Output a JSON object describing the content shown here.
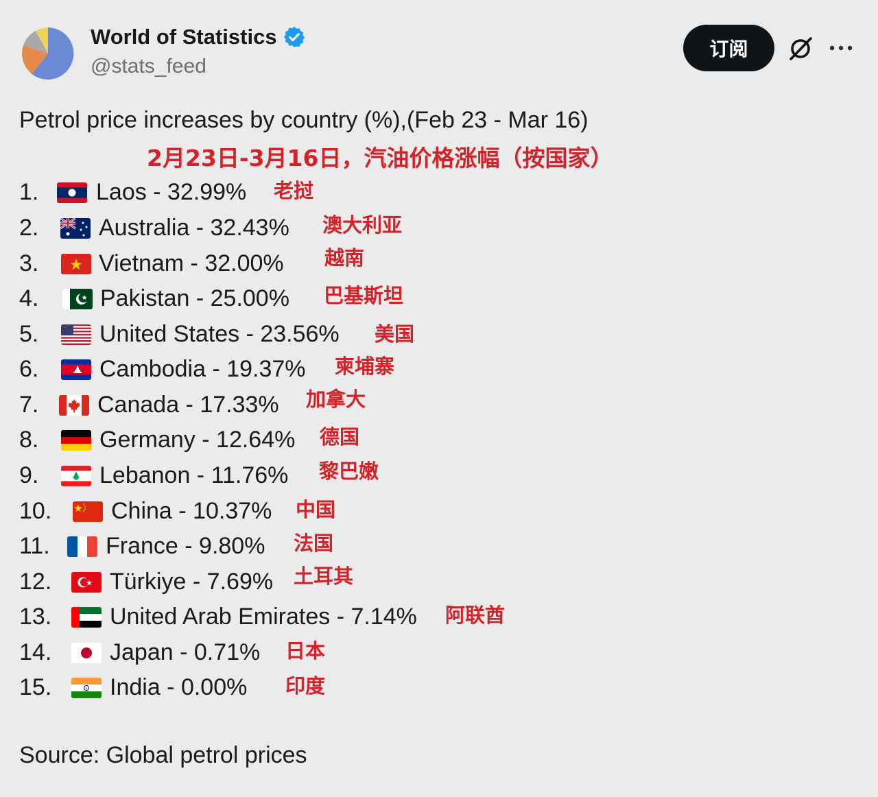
{
  "account": {
    "name": "World of Statistics",
    "handle": "@stats_feed",
    "verified": true,
    "avatar_icon": "pie-chart-avatar"
  },
  "actions": {
    "subscribe_label": "订阅",
    "grok_icon": "grok-icon",
    "more_icon": "more-icon"
  },
  "post": {
    "title": "Petrol price increases by country (%),(Feb 23 - Mar 16)",
    "title_cn": "2月23日-3月16日，汽油价格涨幅（按国家）",
    "items": [
      {
        "num": "1.",
        "entry": "Laos - 32.99%",
        "cn": "老挝",
        "flag": "laos-flag"
      },
      {
        "num": "2.",
        "entry": "Australia - 32.43%",
        "cn": "澳大利亚",
        "flag": "australia-flag"
      },
      {
        "num": "3.",
        "entry": "Vietnam - 32.00%",
        "cn": "越南",
        "flag": "vietnam-flag"
      },
      {
        "num": "4.",
        "entry": "Pakistan - 25.00%",
        "cn": "巴基斯坦",
        "flag": "pakistan-flag"
      },
      {
        "num": "5.",
        "entry": "United States - 23.56%",
        "cn": "美国",
        "flag": "united-states-flag"
      },
      {
        "num": "6.",
        "entry": "Cambodia - 19.37%",
        "cn": "柬埔寨",
        "flag": "cambodia-flag"
      },
      {
        "num": "7.",
        "entry": "Canada - 17.33%",
        "cn": "加拿大",
        "flag": "canada-flag"
      },
      {
        "num": "8.",
        "entry": "Germany - 12.64%",
        "cn": "德国",
        "flag": "germany-flag"
      },
      {
        "num": "9.",
        "entry": "Lebanon - 11.76%",
        "cn": "黎巴嫩",
        "flag": "lebanon-flag"
      },
      {
        "num": "10.",
        "entry": "China - 10.37%",
        "cn": "中国",
        "flag": "china-flag"
      },
      {
        "num": "11.",
        "entry": "France - 9.80%",
        "cn": "法国",
        "flag": "france-flag"
      },
      {
        "num": "12.",
        "entry": "Türkiye - 7.69%",
        "cn": "土耳其",
        "flag": "turkiye-flag"
      },
      {
        "num": "13.",
        "entry": "United Arab Emirates - 7.14%",
        "cn": "阿联酋",
        "flag": "uae-flag"
      },
      {
        "num": "14.",
        "entry": "Japan - 0.71%",
        "cn": "日本",
        "flag": "japan-flag"
      },
      {
        "num": "15.",
        "entry": "India - 0.00%",
        "cn": "印度",
        "flag": "india-flag"
      }
    ],
    "source": "Source: Global petrol prices"
  },
  "colors": {
    "background": "#ebebeb",
    "text": "#1a1a1a",
    "accent_red": "#d2232a",
    "verified_blue": "#1d9bf0",
    "button_dark": "#0f1419",
    "handle_gray": "#6b6f74"
  }
}
